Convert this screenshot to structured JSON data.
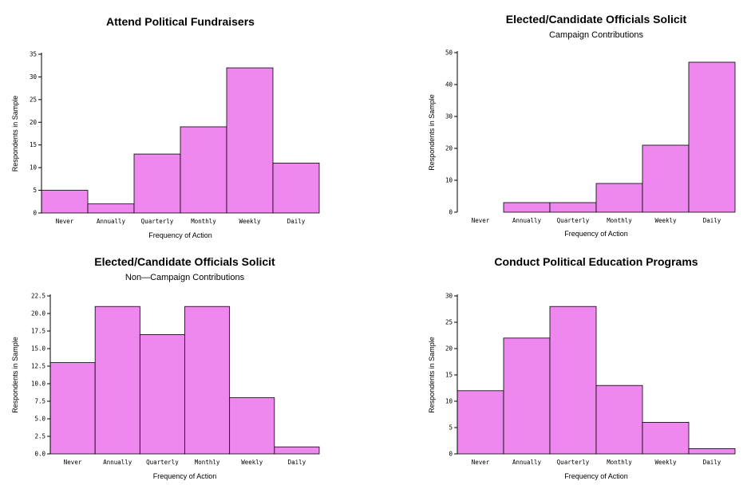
{
  "colors": {
    "bar_fill": "#ee88ee",
    "stroke": "#000000",
    "background": "#ffffff"
  },
  "chart_data": [
    {
      "type": "bar",
      "title": "Attend Political Fundraisers",
      "subtitle": "",
      "xlabel": "Frequency of Action",
      "ylabel": "Respondents in Sample",
      "categories": [
        "Never",
        "Annually",
        "Quarterly",
        "Monthly",
        "Weekly",
        "Daily"
      ],
      "values": [
        5,
        2,
        13,
        19,
        32,
        11
      ],
      "ylim": [
        0,
        35
      ],
      "yticks": [
        0,
        5,
        10,
        15,
        20,
        25,
        30,
        35
      ],
      "ytick_labels": [
        "0",
        "5",
        "10",
        "15",
        "20",
        "25",
        "30",
        "35"
      ],
      "grid": false,
      "legend": "none"
    },
    {
      "type": "bar",
      "title": "Elected/Candidate Officials Solicit",
      "subtitle": "Campaign Contributions",
      "xlabel": "Frequency of Action",
      "ylabel": "Respondents in Sample",
      "categories": [
        "Never",
        "Annually",
        "Quarterly",
        "Monthly",
        "Weekly",
        "Daily"
      ],
      "values": [
        0,
        3,
        3,
        9,
        21,
        47
      ],
      "ylim": [
        0,
        50
      ],
      "yticks": [
        0,
        10,
        20,
        30,
        40,
        50
      ],
      "ytick_labels": [
        "0",
        "10",
        "20",
        "30",
        "40",
        "50"
      ],
      "grid": false,
      "legend": "none"
    },
    {
      "type": "bar",
      "title": "Elected/Candidate Officials Solicit",
      "subtitle": "Non—Campaign Contributions",
      "xlabel": "Frequency of Action",
      "ylabel": "Respondents in Sample",
      "categories": [
        "Never",
        "Annually",
        "Quarterly",
        "Monthly",
        "Weekly",
        "Daily"
      ],
      "values": [
        13,
        21,
        17,
        21,
        8,
        1
      ],
      "ylim": [
        0,
        22.5
      ],
      "yticks": [
        0,
        2.5,
        5,
        7.5,
        10,
        12.5,
        15,
        17.5,
        20,
        22.5
      ],
      "ytick_labels": [
        "0.0",
        "2.5",
        "5.0",
        "7.5",
        "10.0",
        "12.5",
        "15.0",
        "17.5",
        "20.0",
        "22.5"
      ],
      "grid": false,
      "legend": "none"
    },
    {
      "type": "bar",
      "title": "Conduct Political Education Programs",
      "subtitle": "",
      "xlabel": "Frequency of Action",
      "ylabel": "Respondents in Sample",
      "categories": [
        "Never",
        "Annually",
        "Quarterly",
        "Monthly",
        "Weekly",
        "Daily"
      ],
      "values": [
        12,
        22,
        28,
        13,
        6,
        1
      ],
      "ylim": [
        0,
        30
      ],
      "yticks": [
        0,
        5,
        10,
        15,
        20,
        25,
        30
      ],
      "ytick_labels": [
        "0",
        "5",
        "10",
        "15",
        "20",
        "25",
        "30"
      ],
      "grid": false,
      "legend": "none"
    }
  ]
}
